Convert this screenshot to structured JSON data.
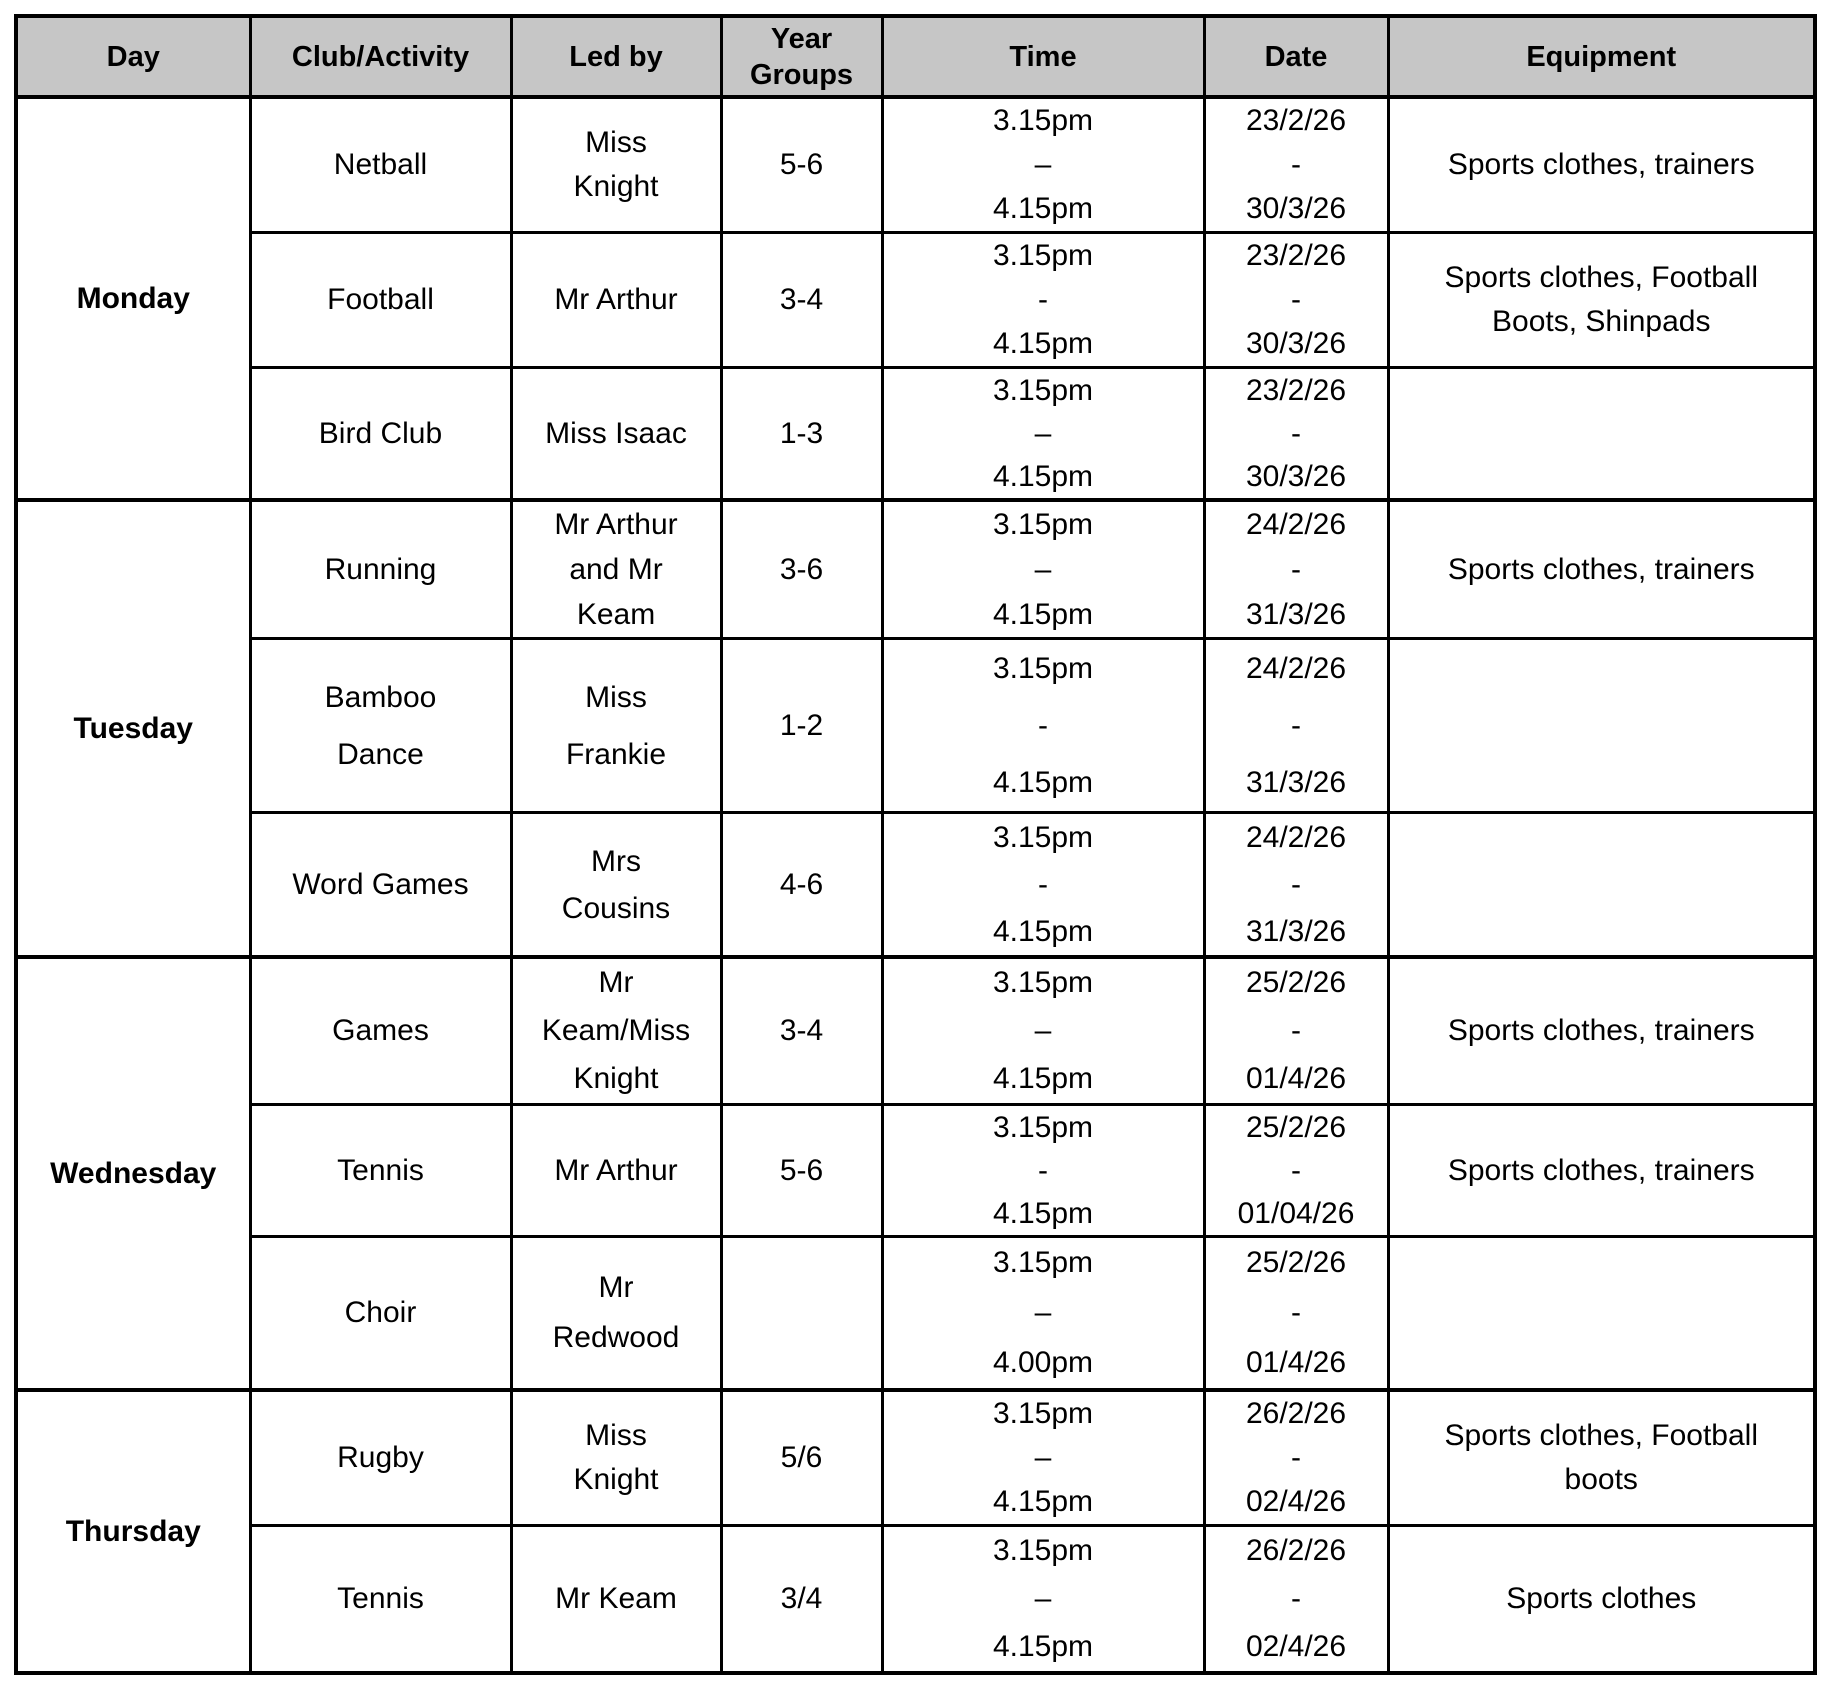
{
  "table": {
    "header_bg": "#c6c6c6",
    "border_color": "#000000",
    "text_color": "#000000",
    "headers": [
      {
        "key": "day",
        "label": "Day"
      },
      {
        "key": "club-activity",
        "label": "Club/Activity"
      },
      {
        "key": "led-by",
        "label": "Led by"
      },
      {
        "key": "year-groups",
        "label": "Year Groups"
      },
      {
        "key": "time",
        "label": "Time"
      },
      {
        "key": "date",
        "label": "Date"
      },
      {
        "key": "equipment",
        "label": "Equipment"
      }
    ]
  },
  "groups": [
    {
      "day": "Monday",
      "rows": [
        {
          "activity": "Netball",
          "led_by": "Miss\nKnight",
          "year_groups": "5-6",
          "time": "3.15pm\n–\n4.15pm",
          "date": "23/2/26\n-\n30/3/26",
          "equipment": "Sports clothes, trainers"
        },
        {
          "activity": "Football",
          "led_by": "Mr Arthur",
          "year_groups": "3-4",
          "time": "3.15pm\n-\n4.15pm",
          "date": "23/2/26\n-\n30/3/26",
          "equipment": "Sports clothes, Football\nBoots, Shinpads"
        },
        {
          "activity": "Bird Club",
          "led_by": "Miss Isaac",
          "year_groups": "1-3",
          "time": "3.15pm\n–\n4.15pm",
          "date": "23/2/26\n-\n30/3/26",
          "equipment": ""
        }
      ]
    },
    {
      "day": "Tuesday",
      "rows": [
        {
          "activity": "Running",
          "led_by": "Mr Arthur\nand Mr\nKeam",
          "year_groups": "3-6",
          "time": "3.15pm\n–\n4.15pm",
          "date": "24/2/26\n-\n31/3/26",
          "equipment": "Sports clothes, trainers"
        },
        {
          "activity": "Bamboo\nDance",
          "led_by": "Miss\nFrankie",
          "year_groups": "1-2",
          "time": "3.15pm\n-\n4.15pm",
          "date": "24/2/26\n-\n31/3/26",
          "equipment": ""
        },
        {
          "activity": "Word Games",
          "led_by": "Mrs\nCousins",
          "year_groups": "4-6",
          "time": "3.15pm\n-\n4.15pm",
          "date": "24/2/26\n-\n31/3/26",
          "equipment": ""
        }
      ]
    },
    {
      "day": "Wednesday",
      "rows": [
        {
          "activity": "Games",
          "led_by": "Mr\nKeam/Miss\nKnight",
          "year_groups": "3-4",
          "time": "3.15pm\n–\n4.15pm",
          "date": "25/2/26\n-\n01/4/26",
          "equipment": "Sports clothes, trainers"
        },
        {
          "activity": "Tennis",
          "led_by": "Mr Arthur",
          "year_groups": "5-6",
          "time": "3.15pm\n-\n4.15pm",
          "date": "25/2/26\n-\n01/04/26",
          "equipment": "Sports clothes, trainers"
        },
        {
          "activity": "Choir",
          "led_by": "Mr\nRedwood",
          "year_groups": "",
          "time": "3.15pm\n–\n4.00pm",
          "date": "25/2/26\n-\n01/4/26",
          "equipment": ""
        }
      ]
    },
    {
      "day": "Thursday",
      "rows": [
        {
          "activity": "Rugby",
          "led_by": "Miss\nKnight",
          "year_groups": "5/6",
          "time": "3.15pm\n–\n4.15pm",
          "date": "26/2/26\n-\n02/4/26",
          "equipment": "Sports clothes, Football\nboots"
        },
        {
          "activity": "Tennis",
          "led_by": "Mr Keam",
          "year_groups": "3/4",
          "time": "3.15pm\n–\n4.15pm",
          "date": "26/2/26\n-\n02/4/26",
          "equipment": "Sports clothes"
        }
      ]
    }
  ]
}
